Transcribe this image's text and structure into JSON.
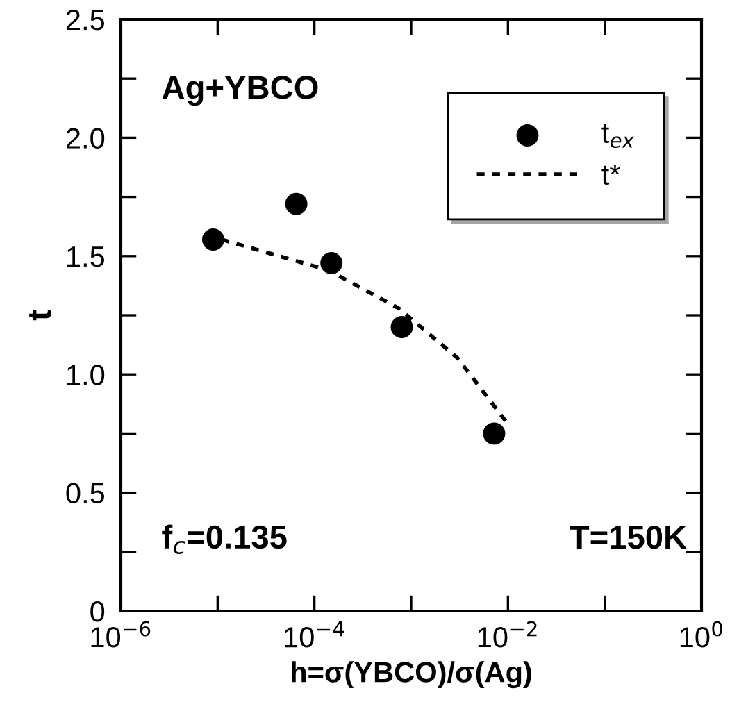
{
  "chart_data": {
    "type": "scatter",
    "xlabel": "h=σ(YBCO)/σ(Ag)",
    "ylabel": "t",
    "log": "x",
    "xlim": [
      1e-06,
      1
    ],
    "ylim": [
      0,
      2.5
    ],
    "xticks": [
      {
        "value": 1e-06,
        "label": "10$^{−6}$"
      },
      {
        "value": 1e-05,
        "label": null
      },
      {
        "value": 0.0001,
        "label": "10$^{−4}$"
      },
      {
        "value": 0.001,
        "label": null
      },
      {
        "value": 0.01,
        "label": "10$^{−2}$"
      },
      {
        "value": 0.1,
        "label": null
      },
      {
        "value": 1,
        "label": "10$^{0}$"
      }
    ],
    "yticks": [
      0,
      {
        "value": 0.25,
        "label": null
      },
      0.5,
      {
        "value": 0.75,
        "label": null
      },
      "1.0",
      {
        "value": 1.25,
        "label": null
      },
      1.5,
      {
        "value": 1.75,
        "label": null
      },
      "2.0",
      {
        "value": 2.25,
        "label": null
      },
      2.5
    ],
    "grid": false,
    "legend": "top right",
    "annotations": [
      "Ag+YBCO",
      "f$_{c}$=0.135",
      "T=150K"
    ],
    "series": [
      {
        "name": "t$_{ex}$",
        "color": "#000000",
        "marker": "circle",
        "x": [
          9e-06,
          6.5e-05,
          0.00015,
          0.0008,
          0.0072
        ],
        "values": [
          1.57,
          1.72,
          1.47,
          1.2,
          0.75
        ]
      },
      {
        "name": "t*",
        "type": "line",
        "color": "#000000",
        "marker": "none",
        "line_style": "dotted",
        "x": [
          1.1e-05,
          0.00014,
          0.00074,
          0.003,
          0.01
        ],
        "values": [
          1.57,
          1.44,
          1.28,
          1.07,
          0.79
        ]
      }
    ]
  }
}
